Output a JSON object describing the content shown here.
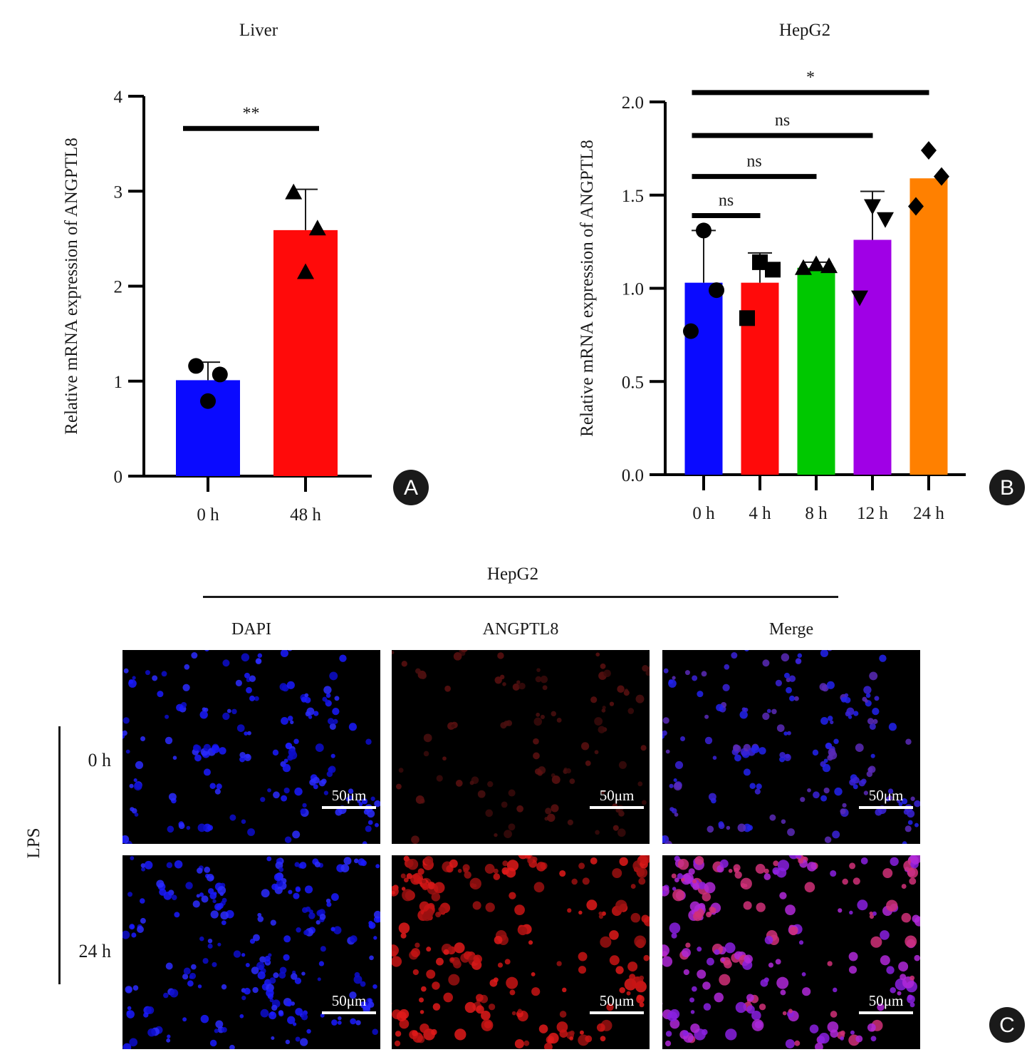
{
  "chart_data": [
    {
      "panel": "A",
      "type": "bar",
      "title": "Liver",
      "xlabel": "",
      "ylabel": "Relative mRNA expression of ANGPTL8",
      "ylim": [
        0,
        4
      ],
      "yticks": [
        "0",
        "1",
        "2",
        "3",
        "4"
      ],
      "categories": [
        "0 h",
        "48 h"
      ],
      "values": [
        1.01,
        2.59
      ],
      "errors": [
        0.19,
        0.43
      ],
      "colors": [
        "#0a0aff",
        "#ff0a0a"
      ],
      "markers": [
        "circle",
        "triangle-up"
      ],
      "points": [
        [
          1.16,
          1.07,
          0.79
        ],
        [
          2.99,
          2.61,
          2.15
        ]
      ],
      "significance": [
        {
          "from": 0,
          "to": 1,
          "label": "**",
          "y": 3.66
        }
      ]
    },
    {
      "panel": "B",
      "type": "bar",
      "title": "HepG2",
      "xlabel": "",
      "ylabel": "Relative mRNA expression of ANGPTL8",
      "ylim": [
        0,
        2.0
      ],
      "yticks": [
        "0.0",
        "0.5",
        "1.0",
        "1.5",
        "2.0"
      ],
      "categories": [
        "0 h",
        "4 h",
        "8 h",
        "12 h",
        "24 h"
      ],
      "values": [
        1.03,
        1.03,
        1.11,
        1.26,
        1.59
      ],
      "errors": [
        0.28,
        0.16,
        0.03,
        0.26,
        0.0
      ],
      "colors": [
        "#0a0aff",
        "#ff0a0a",
        "#00c800",
        "#a000e6",
        "#ff8000"
      ],
      "markers": [
        "circle",
        "square",
        "triangle-up",
        "triangle-down",
        "diamond"
      ],
      "points": [
        [
          1.31,
          0.99,
          0.77
        ],
        [
          1.14,
          1.1,
          0.84
        ],
        [
          1.13,
          1.12,
          1.11
        ],
        [
          1.44,
          1.37,
          0.95
        ],
        [
          1.74,
          1.6,
          1.44
        ]
      ],
      "significance": [
        {
          "from": 0,
          "to": 4,
          "label": "*",
          "y": 2.05
        },
        {
          "from": 0,
          "to": 3,
          "label": "ns",
          "y": 1.82
        },
        {
          "from": 0,
          "to": 2,
          "label": "ns",
          "y": 1.6
        },
        {
          "from": 0,
          "to": 1,
          "label": "ns",
          "y": 1.39
        }
      ]
    }
  ],
  "panels": {
    "a": "A",
    "b": "B",
    "c": "C"
  },
  "micrograph": {
    "title": "HepG2",
    "columns": [
      "DAPI",
      "ANGPTL8",
      "Merge"
    ],
    "group_label": "LPS",
    "rows": [
      "0 h",
      "24 h"
    ],
    "scale_bar": "50μm"
  }
}
